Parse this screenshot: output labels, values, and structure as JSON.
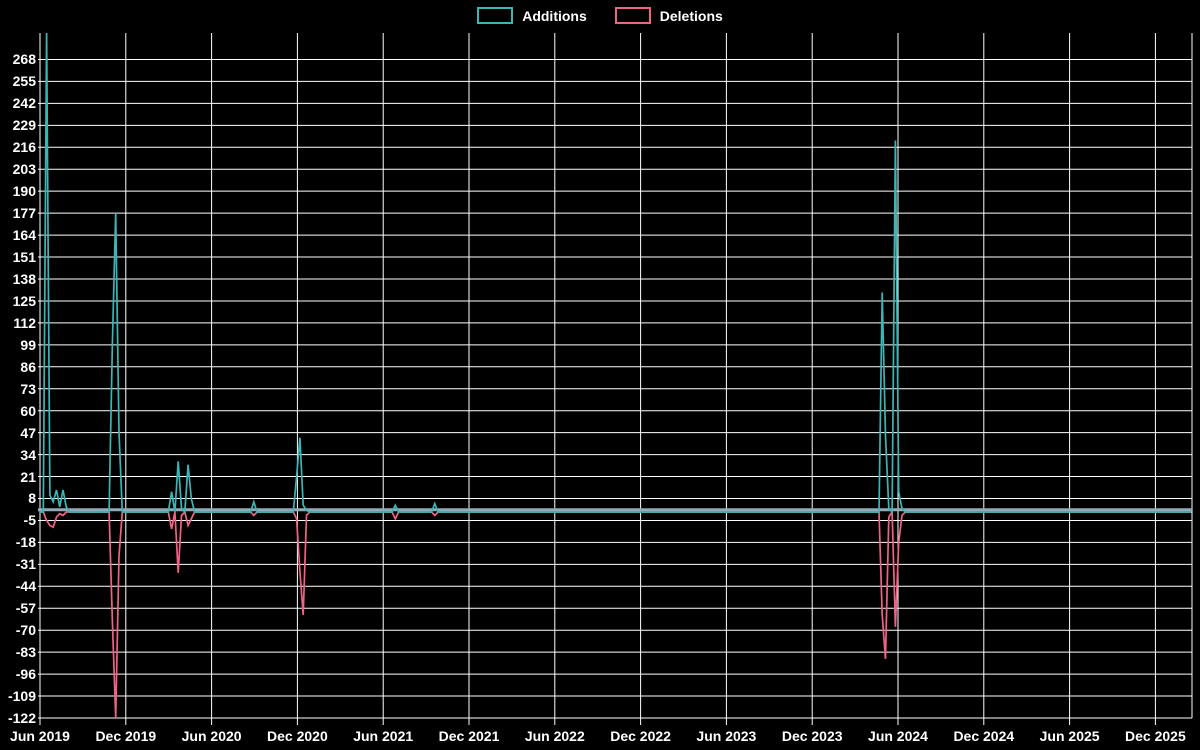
{
  "legend": {
    "additions_label": "Additions",
    "deletions_label": "Deletions"
  },
  "colors": {
    "background": "#000000",
    "grid": "#ffffff",
    "text": "#ffffff",
    "additions": "#3bb5b5",
    "deletions": "#f06385",
    "zero_line": "#93abb8"
  },
  "chart_data": {
    "type": "line",
    "title": "",
    "xlabel": "",
    "ylabel": "",
    "legend_position": "top-center",
    "grid": true,
    "series_names": [
      "Additions",
      "Deletions"
    ],
    "x_ticks": [
      "Jun 2019",
      "Dec 2019",
      "Jun 2020",
      "Dec 2020",
      "Jun 2021",
      "Dec 2021",
      "Jun 2022",
      "Dec 2022",
      "Jun 2023",
      "Dec 2023",
      "Jun 2024",
      "Dec 2024",
      "Jun 2025",
      "Dec 2025"
    ],
    "y_ticks": [
      268,
      255,
      242,
      229,
      216,
      203,
      190,
      177,
      164,
      151,
      138,
      125,
      112,
      99,
      86,
      73,
      60,
      47,
      34,
      21,
      8,
      -5,
      -18,
      -31,
      -44,
      -57,
      -70,
      -83,
      -96,
      -109,
      -122
    ],
    "ylim": [
      -122,
      284
    ],
    "baseline_value": 0,
    "weeks_total": 351,
    "note": "Weekly additions (positive) and deletions (negative); every week not listed below is 0 for both series",
    "spikes": [
      {
        "week": 2,
        "approx_date": "Jun 2019",
        "additions": 284,
        "deletions": -5
      },
      {
        "week": 3,
        "approx_date": "Jun 2019",
        "additions": 10,
        "deletions": -8
      },
      {
        "week": 4,
        "approx_date": "Jul 2019",
        "additions": 6,
        "deletions": -9
      },
      {
        "week": 5,
        "approx_date": "Jul 2019",
        "additions": 13,
        "deletions": -3
      },
      {
        "week": 6,
        "approx_date": "Jul 2019",
        "additions": 3,
        "deletions": -1
      },
      {
        "week": 7,
        "approx_date": "Jul 2019",
        "additions": 13,
        "deletions": -2
      },
      {
        "week": 8,
        "approx_date": "Aug 2019",
        "additions": 3,
        "deletions": 0
      },
      {
        "week": 22,
        "approx_date": "Nov 2019",
        "additions": 100,
        "deletions": -65
      },
      {
        "week": 23,
        "approx_date": "Nov 2019",
        "additions": 177,
        "deletions": -122
      },
      {
        "week": 24,
        "approx_date": "Dec 2019",
        "additions": 47,
        "deletions": -26
      },
      {
        "week": 40,
        "approx_date": "Mar 2020",
        "additions": 12,
        "deletions": -10
      },
      {
        "week": 42,
        "approx_date": "Mar 2020",
        "additions": 30,
        "deletions": -36
      },
      {
        "week": 43,
        "approx_date": "Apr 2020",
        "additions": 2,
        "deletions": -2
      },
      {
        "week": 45,
        "approx_date": "Apr 2020",
        "additions": 28,
        "deletions": -8
      },
      {
        "week": 46,
        "approx_date": "Apr 2020",
        "additions": 8,
        "deletions": -4
      },
      {
        "week": 65,
        "approx_date": "Sep 2020",
        "additions": 6,
        "deletions": -2
      },
      {
        "week": 78,
        "approx_date": "Dec 2020",
        "additions": 21,
        "deletions": -4
      },
      {
        "week": 79,
        "approx_date": "Dec 2020",
        "additions": 44,
        "deletions": -35
      },
      {
        "week": 80,
        "approx_date": "Dec 2020",
        "additions": 4,
        "deletions": -61
      },
      {
        "week": 81,
        "approx_date": "Jan 2021",
        "additions": 1,
        "deletions": -2
      },
      {
        "week": 108,
        "approx_date": "Jun 2021",
        "additions": 4,
        "deletions": -4
      },
      {
        "week": 120,
        "approx_date": "Sep 2021",
        "additions": 5,
        "deletions": -2
      },
      {
        "week": 256,
        "approx_date": "May 2024",
        "additions": 130,
        "deletions": -61
      },
      {
        "week": 257,
        "approx_date": "May 2024",
        "additions": 45,
        "deletions": -87
      },
      {
        "week": 258,
        "approx_date": "May 2024",
        "additions": 2,
        "deletions": -3
      },
      {
        "week": 260,
        "approx_date": "Jun 2024",
        "additions": 220,
        "deletions": -68
      },
      {
        "week": 261,
        "approx_date": "Jun 2024",
        "additions": 12,
        "deletions": -18
      },
      {
        "week": 262,
        "approx_date": "Jun 2024",
        "additions": 2,
        "deletions": -2
      }
    ]
  }
}
